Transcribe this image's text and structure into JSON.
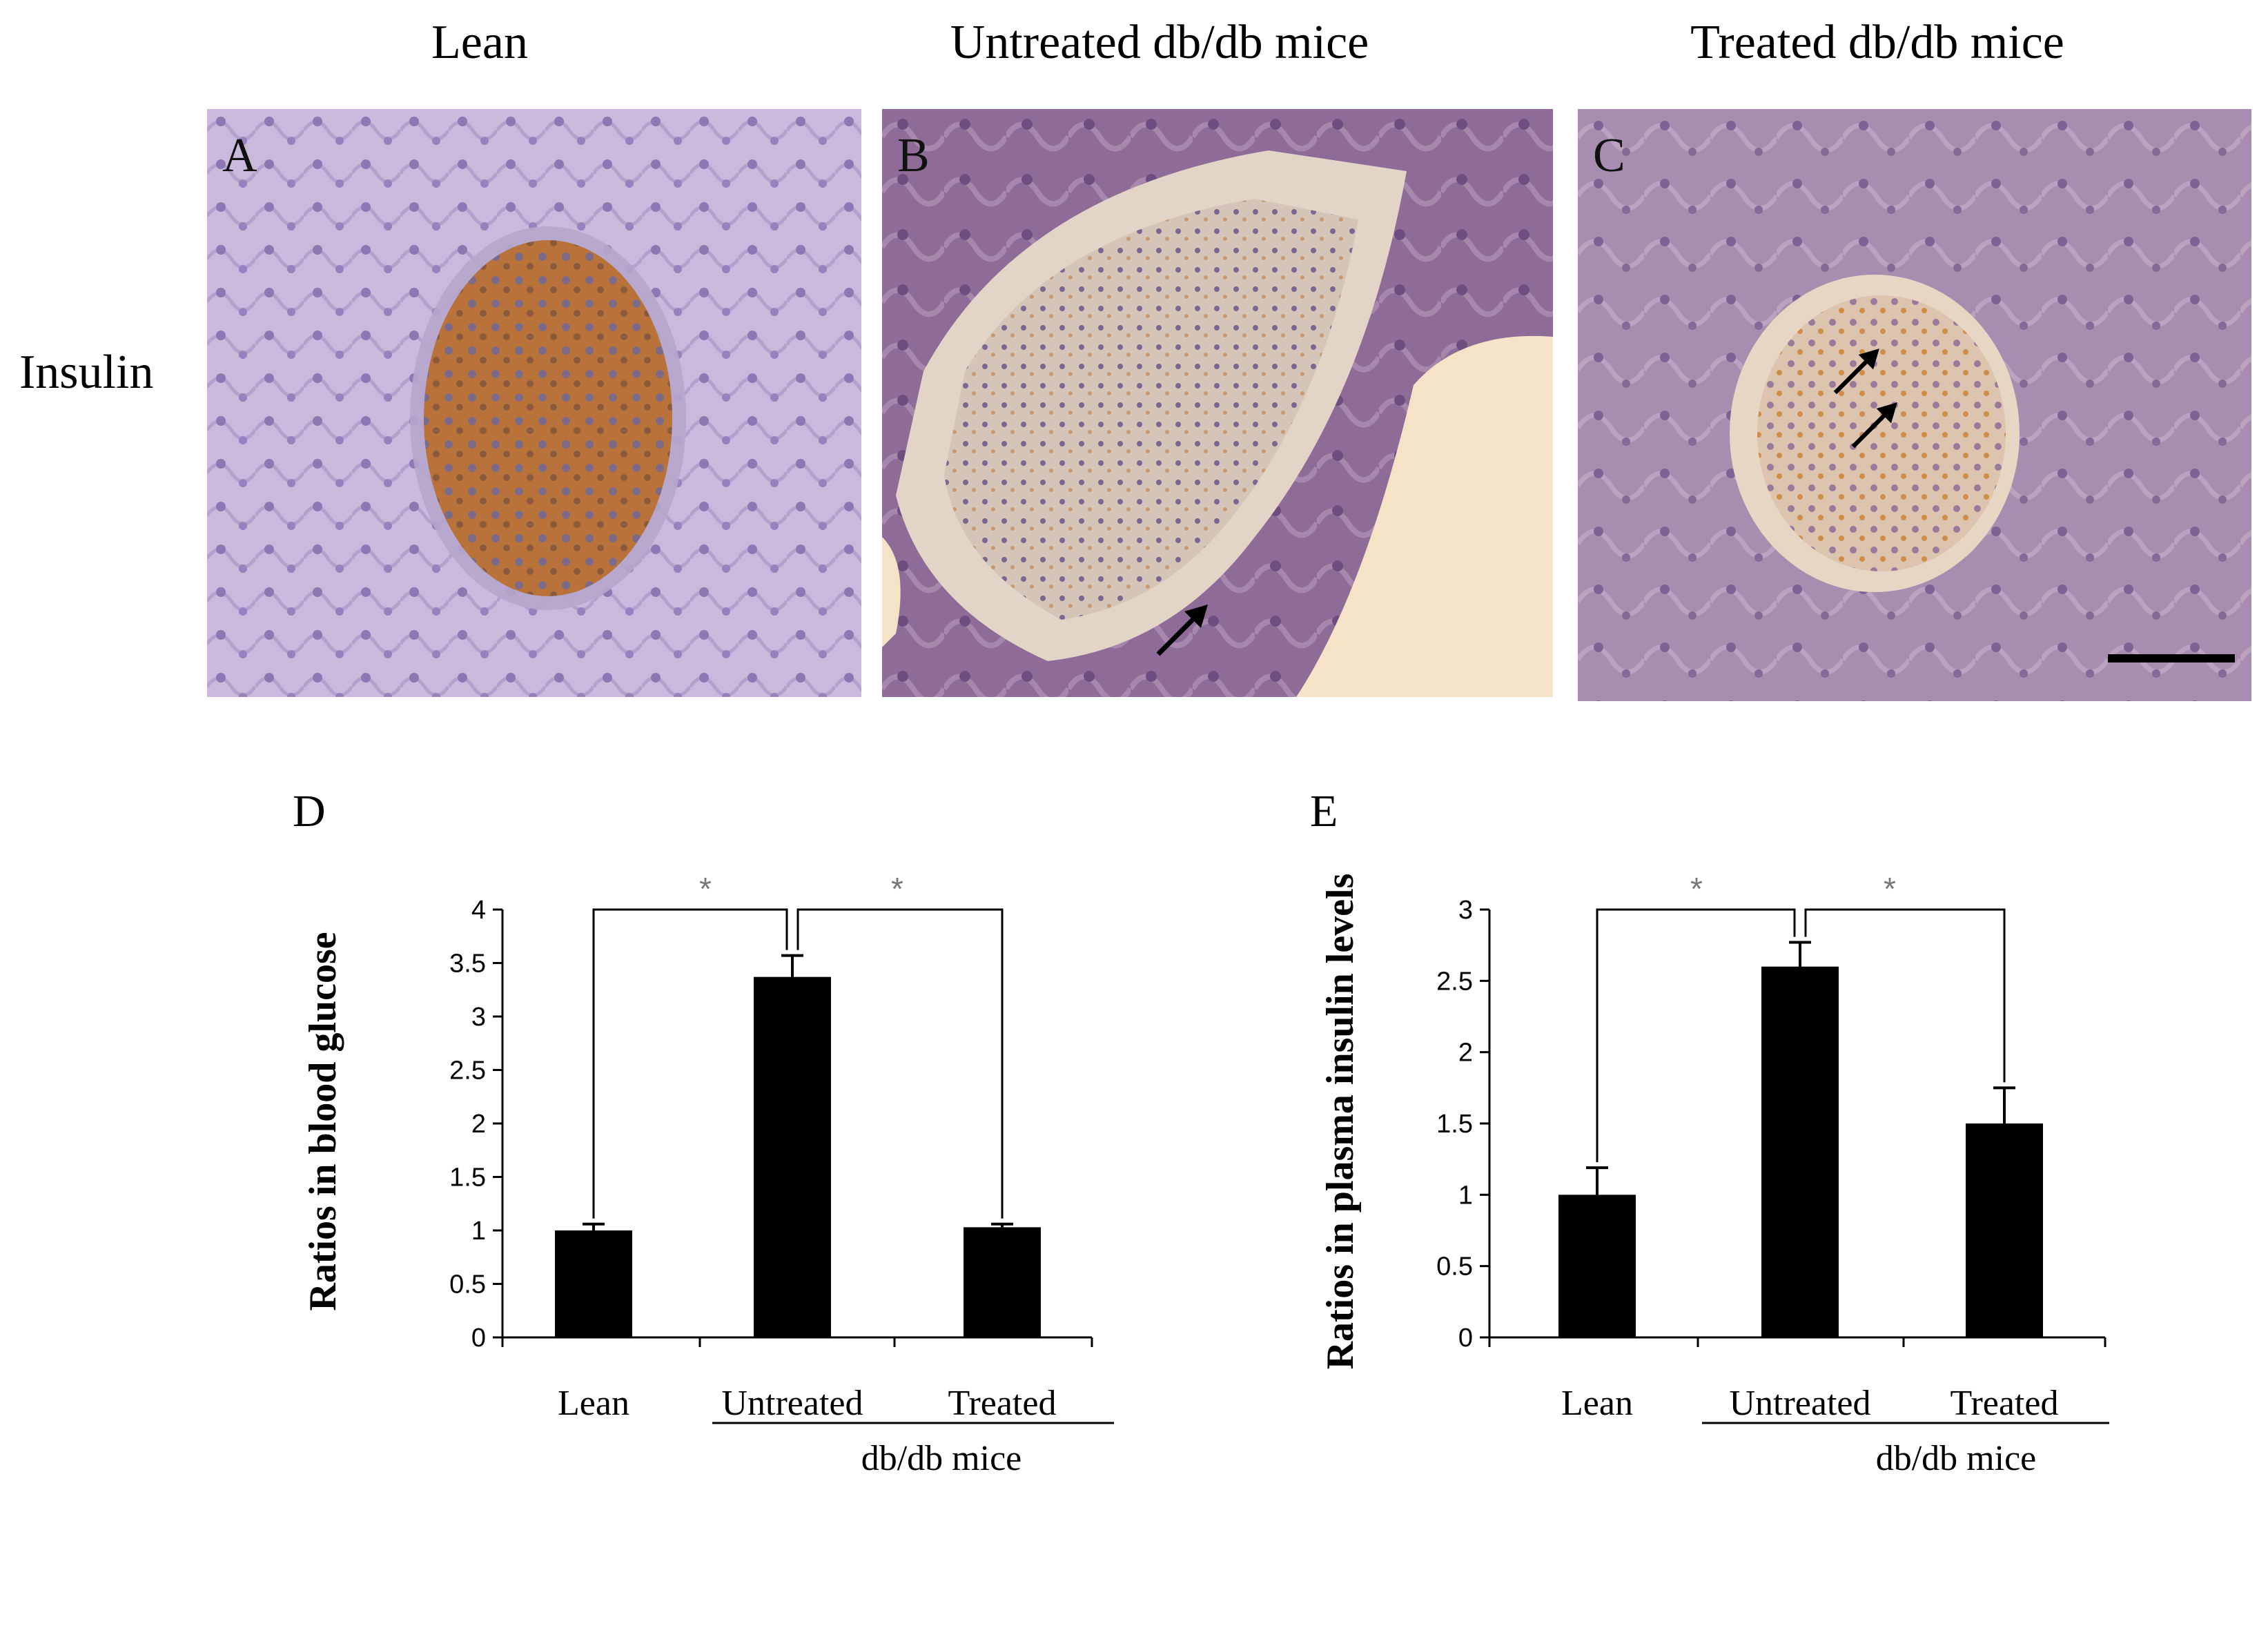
{
  "column_titles": [
    "Lean",
    "Untreated  db/db mice",
    "Treated  db/db mice"
  ],
  "row_label": "Insulin",
  "micrographs": [
    {
      "letter": "A",
      "arrows": 0,
      "scale_bar": false
    },
    {
      "letter": "B",
      "arrows": 1,
      "scale_bar": false
    },
    {
      "letter": "C",
      "arrows": 2,
      "scale_bar": true
    }
  ],
  "chart_data": [
    {
      "panel": "D",
      "type": "bar",
      "categories": [
        "Lean",
        "Untreated",
        "Treated"
      ],
      "group_label": "db/db mice",
      "values": [
        1.0,
        3.37,
        1.03
      ],
      "errors": [
        0.06,
        0.2,
        0.03
      ],
      "ylabel": "Ratios in blood glucose",
      "ylim": [
        0,
        4
      ],
      "yticks": [
        "0",
        "0.5",
        "1",
        "1.5",
        "2",
        "2.5",
        "3",
        "3.5",
        "4"
      ],
      "significance": [
        "*",
        "*"
      ],
      "bar_color": "#000000"
    },
    {
      "panel": "E",
      "type": "bar",
      "categories": [
        "Lean",
        "Untreated",
        "Treated"
      ],
      "group_label": "db/db mice",
      "values": [
        1.0,
        2.6,
        1.5
      ],
      "errors": [
        0.19,
        0.17,
        0.25
      ],
      "ylabel": "Ratios in plasma insulin levels",
      "ylim": [
        0,
        3
      ],
      "yticks": [
        "0",
        "0.5",
        "1",
        "1.5",
        "2",
        "2.5",
        "3"
      ],
      "significance": [
        "*",
        "*"
      ],
      "bar_color": "#000000"
    }
  ]
}
